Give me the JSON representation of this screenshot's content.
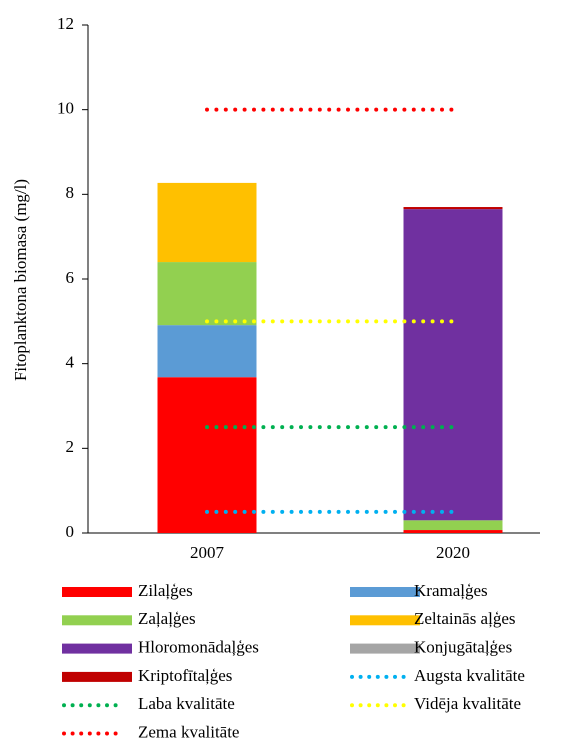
{
  "chart_data": {
    "type": "stacked_bar",
    "ylabel": "Fitoplanktona biomasa (mg/l)",
    "categories": [
      "2007",
      "2020"
    ],
    "ylim": [
      0,
      12
    ],
    "yticks": [
      0,
      2,
      4,
      6,
      8,
      10,
      12
    ],
    "series": [
      {
        "name": "Zilaļģes",
        "color": "#ff0000",
        "values": [
          3.68,
          0.07
        ]
      },
      {
        "name": "Kramaļģes",
        "color": "#5b9bd5",
        "values": [
          1.23,
          0
        ]
      },
      {
        "name": "Zaļaļģes",
        "color": "#92d050",
        "values": [
          1.49,
          0.23
        ]
      },
      {
        "name": "Zeltainās aļģes",
        "color": "#ffc000",
        "values": [
          1.87,
          0
        ]
      },
      {
        "name": "Hloromonādaļģes",
        "color": "#7030a0",
        "values": [
          0,
          7.35
        ]
      },
      {
        "name": "Konjugātaļģes",
        "color": "#a5a5a5",
        "values": [
          0,
          0
        ]
      },
      {
        "name": "Kriptofītaļģes",
        "color": "#c00000",
        "values": [
          0,
          0.05
        ]
      }
    ],
    "thresholds": [
      {
        "name": "Augsta kvalitāte",
        "color": "#00b0f0",
        "value": 0.5
      },
      {
        "name": "Laba kvalitāte",
        "color": "#00b050",
        "value": 2.5
      },
      {
        "name": "Vidēja kvalitāte",
        "color": "#ffff00",
        "value": 5
      },
      {
        "name": "Zema kvalitāte",
        "color": "#ff0000",
        "value": 10
      }
    ]
  }
}
